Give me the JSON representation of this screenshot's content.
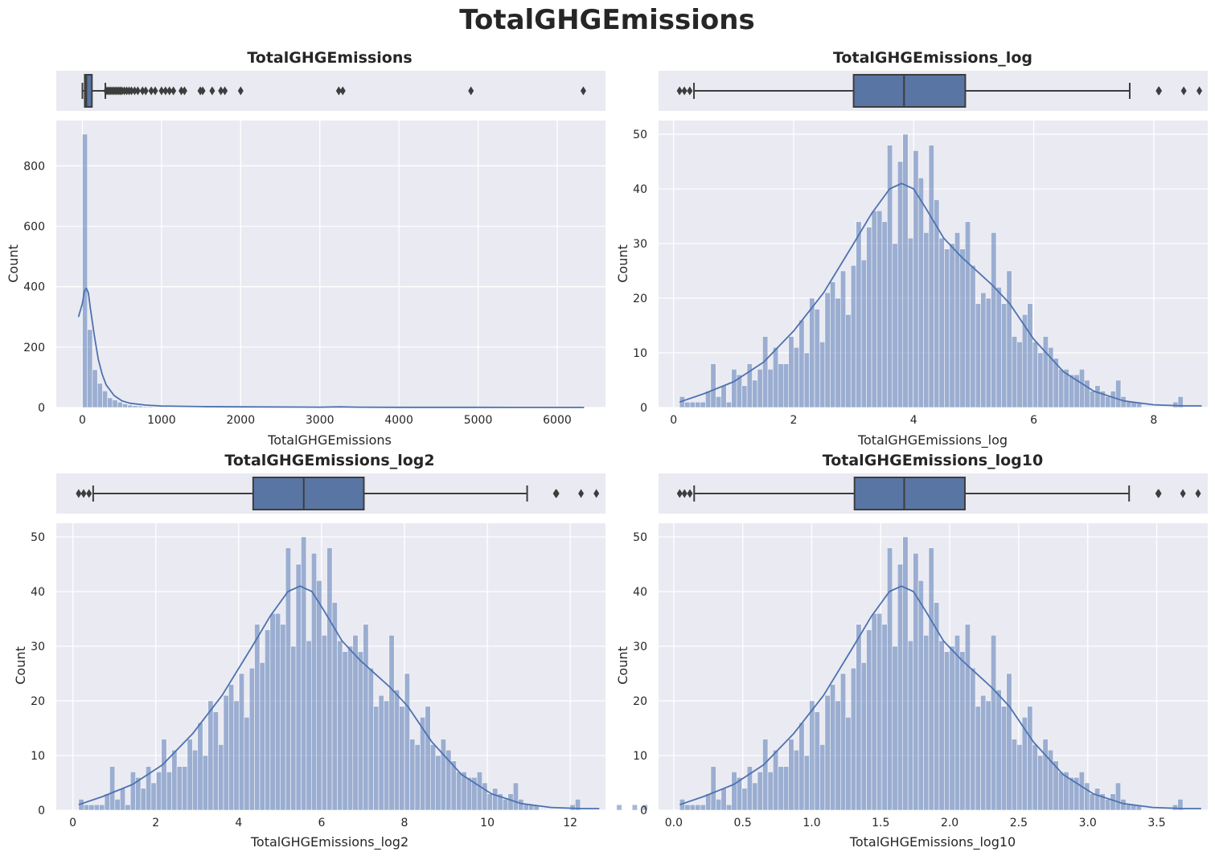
{
  "figure": {
    "title": "TotalGHGEmissions"
  },
  "colors": {
    "axes_bg": "#eaeaf2",
    "grid": "#ffffff",
    "bar_fill": "#4c72b0",
    "bar_alpha": 0.5,
    "kde": "#4c72b0",
    "box_fill": "#5975a4",
    "box_line": "#3d3d3d",
    "text": "#262626"
  },
  "chart_data": [
    {
      "type": "histogram",
      "title": "TotalGHGEmissions",
      "xlabel": "TotalGHGEmissions",
      "ylabel": "Count",
      "xlim": [
        -330,
        6610
      ],
      "ylim": [
        0,
        950
      ],
      "xticks": [
        0,
        1000,
        2000,
        3000,
        4000,
        5000,
        6000
      ],
      "xtick_labels": [
        "0",
        "1000",
        "2000",
        "3000",
        "4000",
        "5000",
        "6000"
      ],
      "yticks": [
        0,
        200,
        400,
        600,
        800
      ],
      "ytick_labels": [
        "0",
        "200",
        "400",
        "600",
        "800"
      ],
      "grid": true,
      "bin_width": 63.4,
      "bins_start": 0.1,
      "counts": [
        905,
        258,
        125,
        80,
        55,
        32,
        25,
        18,
        12,
        8,
        6,
        5,
        3,
        3,
        2,
        2,
        2,
        1,
        1,
        1,
        1,
        0,
        1,
        0,
        1,
        0,
        1,
        0,
        1
      ],
      "kde": {
        "x": [
          -50,
          0,
          25,
          50,
          75,
          100,
          150,
          200,
          250,
          300,
          400,
          500,
          600,
          800,
          1000,
          1500,
          2000,
          3000,
          3250,
          3500,
          4000,
          5000,
          6000,
          6340
        ],
        "y": [
          300,
          345,
          385,
          395,
          380,
          330,
          240,
          160,
          110,
          75,
          40,
          22,
          14,
          8,
          5,
          3,
          2,
          1,
          2,
          1,
          0.5,
          0.5,
          0.3,
          0.3
        ]
      },
      "boxplot": {
        "whisker_low": 0.1,
        "q1": 30,
        "median": 50,
        "q3": 120,
        "whisker_high": 290,
        "outliers": [
          300,
          320,
          340,
          360,
          380,
          400,
          420,
          440,
          460,
          480,
          500,
          530,
          560,
          590,
          620,
          660,
          700,
          760,
          800,
          870,
          920,
          1000,
          1050,
          1100,
          1150,
          1250,
          1290,
          1490,
          1520,
          1640,
          1750,
          1800,
          2000,
          3240,
          3290,
          4910,
          6330
        ]
      }
    },
    {
      "type": "histogram",
      "title": "TotalGHGEmissions_log",
      "xlabel": "TotalGHGEmissions_log",
      "ylabel": "Count",
      "xlim": [
        -0.25,
        8.9
      ],
      "ylim": [
        0,
        52.5
      ],
      "xticks": [
        0,
        2,
        4,
        6,
        8
      ],
      "xtick_labels": [
        "0",
        "2",
        "4",
        "6",
        "8"
      ],
      "yticks": [
        0,
        10,
        20,
        30,
        40,
        50
      ],
      "ytick_labels": [
        "0",
        "10",
        "20",
        "30",
        "40",
        "50"
      ],
      "grid": true,
      "bins_start": 0.1,
      "bin_width": 0.0865,
      "counts": [
        2,
        1,
        1,
        1,
        1,
        3,
        8,
        2,
        4,
        1,
        7,
        6,
        4,
        8,
        5,
        7,
        13,
        7,
        11,
        8,
        8,
        13,
        11,
        16,
        10,
        20,
        18,
        12,
        21,
        23,
        20,
        25,
        17,
        26,
        34,
        27,
        33,
        36,
        36,
        34,
        48,
        30,
        45,
        50,
        31,
        47,
        42,
        32,
        48,
        38,
        31,
        29,
        30,
        32,
        29,
        34,
        26,
        19,
        21,
        20,
        32,
        22,
        19,
        25,
        13,
        12,
        17,
        19,
        12,
        10,
        13,
        11,
        9,
        7,
        7,
        6,
        6,
        7,
        5,
        3,
        4,
        3,
        2,
        3,
        5,
        2,
        1,
        1,
        1,
        0,
        0,
        0,
        0,
        0,
        0,
        1,
        2,
        0,
        0,
        0,
        0,
        0,
        0,
        0,
        1,
        0,
        0,
        1,
        0,
        1
      ],
      "kde": {
        "x": [
          0.1,
          0.5,
          1.0,
          1.5,
          2.0,
          2.5,
          3.0,
          3.3,
          3.6,
          3.8,
          4.0,
          4.2,
          4.5,
          4.8,
          5.0,
          5.3,
          5.6,
          6.0,
          6.5,
          7.0,
          7.5,
          8.0,
          8.5,
          8.8
        ],
        "y": [
          1,
          2.5,
          4.7,
          8.3,
          14,
          21,
          30,
          35.5,
          40,
          41,
          40,
          36.5,
          31,
          27.5,
          25.5,
          22.5,
          19,
          12.5,
          6.5,
          3,
          1.2,
          0.5,
          0.3,
          0.3
        ]
      },
      "boxplot": {
        "whisker_low": 0.34,
        "q1": 3.0,
        "median": 3.84,
        "q3": 4.86,
        "whisker_high": 7.6,
        "outliers": [
          0.1,
          0.18,
          0.27,
          8.08,
          8.09,
          8.5,
          8.76
        ]
      }
    },
    {
      "type": "histogram",
      "title": "TotalGHGEmissions_log2",
      "xlabel": "TotalGHGEmissions_log2",
      "ylabel": "Count",
      "xlim": [
        -0.4,
        12.85
      ],
      "ylim": [
        0,
        52.5
      ],
      "xticks": [
        0,
        2,
        4,
        6,
        8,
        10,
        12
      ],
      "xtick_labels": [
        "0",
        "2",
        "4",
        "6",
        "8",
        "10",
        "12"
      ],
      "yticks": [
        0,
        10,
        20,
        30,
        40,
        50
      ],
      "ytick_labels": [
        "0",
        "10",
        "20",
        "30",
        "40",
        "50"
      ],
      "grid": true,
      "bins_start": 0.14,
      "bin_width": 0.1248,
      "counts": [
        2,
        1,
        1,
        1,
        1,
        3,
        8,
        2,
        4,
        1,
        7,
        6,
        4,
        8,
        5,
        7,
        13,
        7,
        11,
        8,
        8,
        13,
        11,
        16,
        10,
        20,
        18,
        12,
        21,
        23,
        20,
        25,
        17,
        26,
        34,
        27,
        33,
        36,
        36,
        34,
        48,
        30,
        45,
        50,
        31,
        47,
        42,
        32,
        48,
        38,
        31,
        29,
        30,
        32,
        29,
        34,
        26,
        19,
        21,
        20,
        32,
        22,
        19,
        25,
        13,
        12,
        17,
        19,
        12,
        10,
        13,
        11,
        9,
        7,
        7,
        6,
        6,
        7,
        5,
        3,
        4,
        3,
        2,
        3,
        5,
        2,
        1,
        1,
        1,
        0,
        0,
        0,
        0,
        0,
        0,
        1,
        2,
        0,
        0,
        0,
        0,
        0,
        0,
        0,
        1,
        0,
        0,
        1,
        0,
        1
      ],
      "kde": {
        "x": [
          0.14,
          0.72,
          1.44,
          2.16,
          2.89,
          3.6,
          4.33,
          4.76,
          5.19,
          5.48,
          5.77,
          6.06,
          6.49,
          6.92,
          7.21,
          7.65,
          8.08,
          8.66,
          9.38,
          10.1,
          10.82,
          11.54,
          12.26,
          12.7
        ],
        "y": [
          1,
          2.5,
          4.7,
          8.3,
          14,
          21,
          30,
          35.5,
          40,
          41,
          40,
          36.5,
          31,
          27.5,
          25.5,
          22.5,
          19,
          12.5,
          6.5,
          3,
          1.2,
          0.5,
          0.3,
          0.3
        ]
      },
      "boxplot": {
        "whisker_low": 0.49,
        "q1": 4.35,
        "median": 5.57,
        "q3": 7.02,
        "whisker_high": 10.96,
        "outliers": [
          0.14,
          0.26,
          0.39,
          11.65,
          11.67,
          12.26,
          12.63
        ]
      }
    },
    {
      "type": "histogram",
      "title": "TotalGHGEmissions_log10",
      "xlabel": "TotalGHGEmissions_log10",
      "ylabel": "Count",
      "xlim": [
        -0.11,
        3.87
      ],
      "ylim": [
        0,
        52.5
      ],
      "xticks": [
        0.0,
        0.5,
        1.0,
        1.5,
        2.0,
        2.5,
        3.0,
        3.5
      ],
      "xtick_labels": [
        "0.0",
        "0.5",
        "1.0",
        "1.5",
        "2.0",
        "2.5",
        "3.0",
        "3.5"
      ],
      "yticks": [
        0,
        10,
        20,
        30,
        40,
        50
      ],
      "ytick_labels": [
        "0",
        "10",
        "20",
        "30",
        "40",
        "50"
      ],
      "grid": true,
      "bins_start": 0.043,
      "bin_width": 0.0376,
      "counts": [
        2,
        1,
        1,
        1,
        1,
        3,
        8,
        2,
        4,
        1,
        7,
        6,
        4,
        8,
        5,
        7,
        13,
        7,
        11,
        8,
        8,
        13,
        11,
        16,
        10,
        20,
        18,
        12,
        21,
        23,
        20,
        25,
        17,
        26,
        34,
        27,
        33,
        36,
        36,
        34,
        48,
        30,
        45,
        50,
        31,
        47,
        42,
        32,
        48,
        38,
        31,
        29,
        30,
        32,
        29,
        34,
        26,
        19,
        21,
        20,
        32,
        22,
        19,
        25,
        13,
        12,
        17,
        19,
        12,
        10,
        13,
        11,
        9,
        7,
        7,
        6,
        6,
        7,
        5,
        3,
        4,
        3,
        2,
        3,
        5,
        2,
        1,
        1,
        1,
        0,
        0,
        0,
        0,
        0,
        0,
        1,
        2,
        0,
        0,
        0,
        0,
        0,
        0,
        0,
        1,
        0,
        0,
        1,
        0,
        1
      ],
      "kde": {
        "x": [
          0.043,
          0.217,
          0.434,
          0.651,
          0.869,
          1.086,
          1.303,
          1.433,
          1.563,
          1.65,
          1.737,
          1.824,
          1.954,
          2.085,
          2.172,
          2.302,
          2.432,
          2.606,
          2.823,
          3.04,
          3.257,
          3.474,
          3.691,
          3.822
        ],
        "y": [
          1,
          2.5,
          4.7,
          8.3,
          14,
          21,
          30,
          35.5,
          40,
          41,
          40,
          36.5,
          31,
          27.5,
          25.5,
          22.5,
          19,
          12.5,
          6.5,
          3,
          1.2,
          0.5,
          0.3,
          0.3
        ]
      },
      "boxplot": {
        "whisker_low": 0.148,
        "q1": 1.31,
        "median": 1.67,
        "q3": 2.11,
        "whisker_high": 3.3,
        "outliers": [
          0.043,
          0.078,
          0.117,
          3.51,
          3.515,
          3.69,
          3.8
        ]
      }
    }
  ]
}
